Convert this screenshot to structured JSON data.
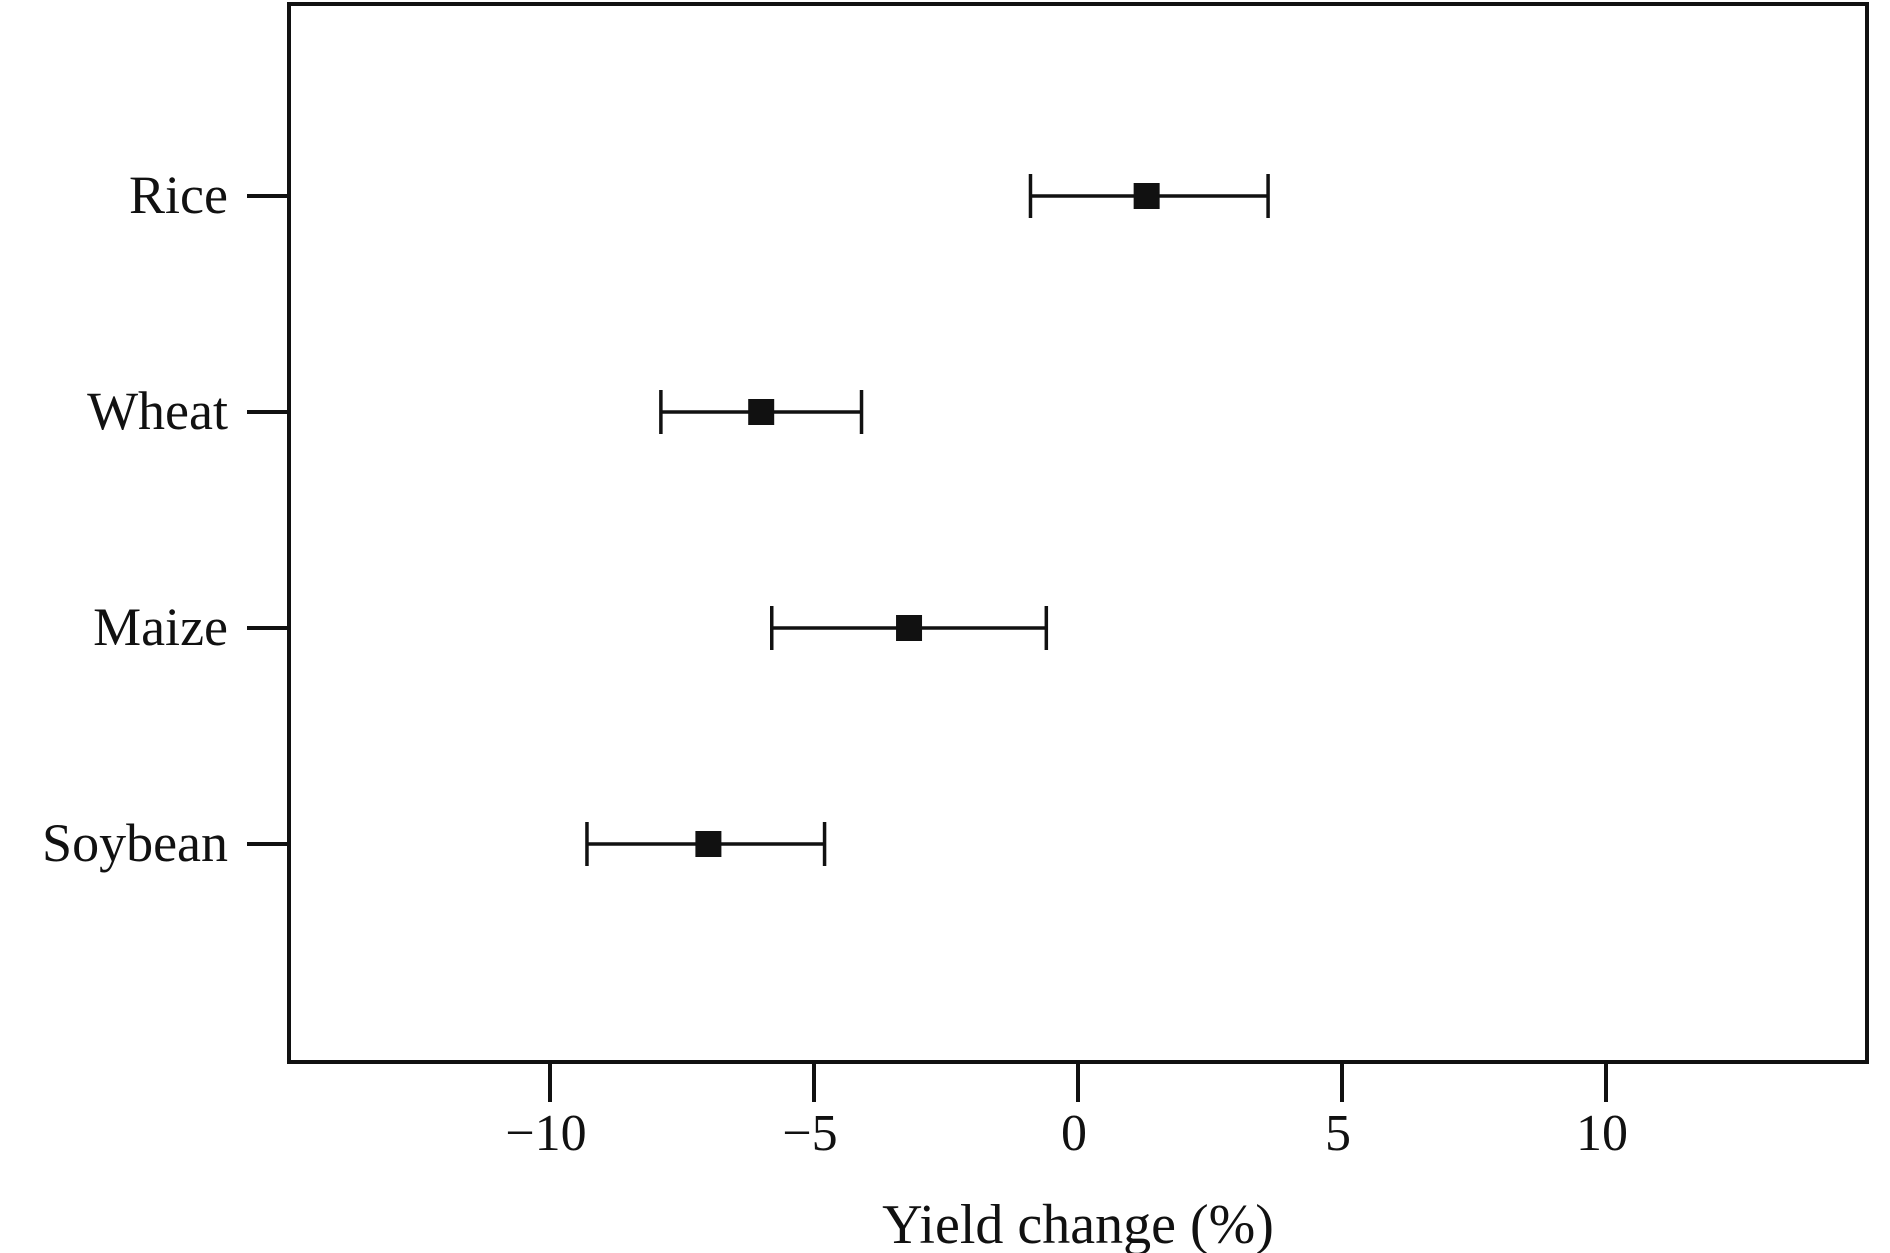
{
  "chart_data": {
    "type": "scatter",
    "orientation": "horizontal",
    "xlabel": "Yield change (%)",
    "ylabel": "",
    "title": "",
    "xlim": [
      -14.9,
      15
    ],
    "xticks": [
      -10,
      -5,
      0,
      5,
      10
    ],
    "xtick_labels": [
      "−10",
      "−5",
      "0",
      "5",
      "10"
    ],
    "categories": [
      "Rice",
      "Wheat",
      "Maize",
      "Soybean"
    ],
    "values": [
      1.3,
      -6.0,
      -3.2,
      -7.0
    ],
    "ci_low": [
      -0.9,
      -7.9,
      -5.8,
      -9.3
    ],
    "ci_high": [
      3.6,
      -4.1,
      -0.6,
      -4.8
    ],
    "marker": "square",
    "color": "#111111",
    "grid": false,
    "legend": "none"
  }
}
